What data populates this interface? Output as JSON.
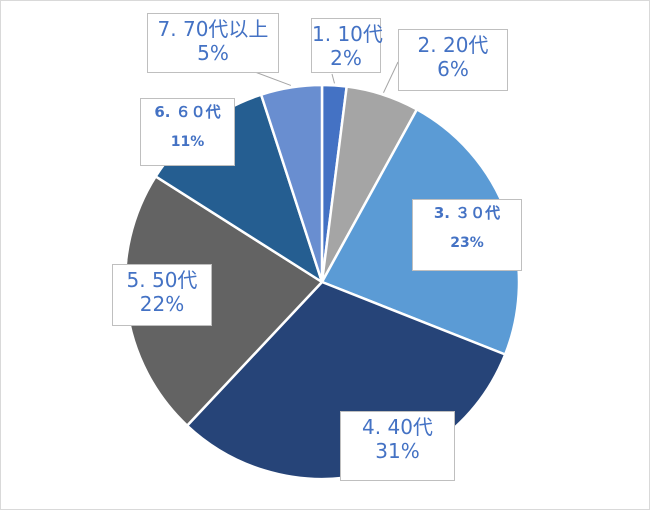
{
  "chart_data": {
    "type": "pie",
    "title": "",
    "slices": [
      {
        "label": "1. 10代",
        "value": 2,
        "value_label": "2%",
        "color": "#4472c4"
      },
      {
        "label": "2. 20代",
        "value": 6,
        "value_label": "6%",
        "color": "#a5a5a5"
      },
      {
        "label": "3. ３０代",
        "value": 23,
        "value_label": "23%",
        "color": "#5b9bd5"
      },
      {
        "label": "4. 40代",
        "value": 31,
        "value_label": "31%",
        "color": "#264478"
      },
      {
        "label": "5. 50代",
        "value": 22,
        "value_label": "22%",
        "color": "#636363"
      },
      {
        "label": "6. ６０代",
        "value": 11,
        "value_label": "11%",
        "color": "#255e91"
      },
      {
        "label": "7. 70代以上",
        "value": 5,
        "value_label": "5%",
        "color": "#698ed0"
      }
    ],
    "start_angle": "12 o'clock",
    "direction": "clockwise",
    "data_label_style": "callout",
    "label_color": "#4472c4",
    "legend": "none"
  }
}
